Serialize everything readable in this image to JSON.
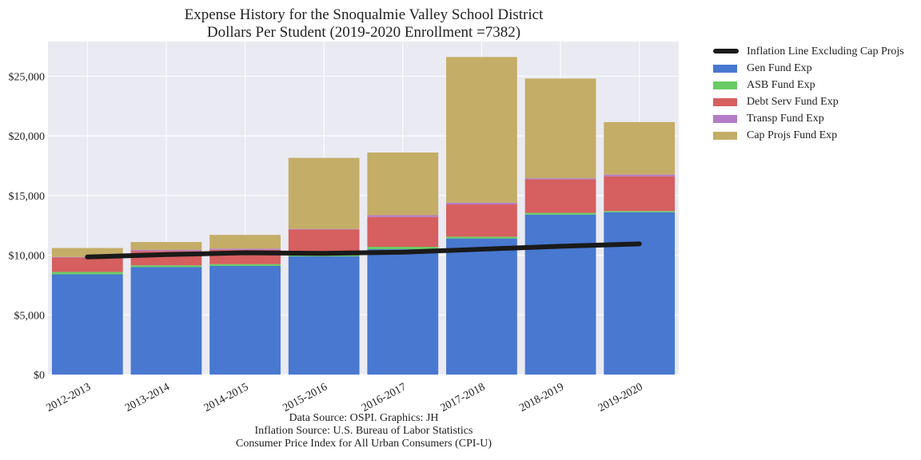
{
  "chart_data": {
    "type": "bar",
    "stacked": true,
    "title": "Expense History for the Snoqualmie Valley School District",
    "subtitle": "Dollars Per Student (2019-2020 Enrollment =7382)",
    "categories": [
      "2012-2013",
      "2013-2014",
      "2014-2015",
      "2015-2016",
      "2016-2017",
      "2017-2018",
      "2018-2019",
      "2019-2020"
    ],
    "series": [
      {
        "name": "Gen Fund Exp",
        "color": "#4878d0",
        "values": [
          8400,
          9000,
          9100,
          9900,
          10500,
          11400,
          13400,
          13600
        ]
      },
      {
        "name": "ASB Fund Exp",
        "color": "#6acc64",
        "values": [
          200,
          150,
          150,
          150,
          200,
          150,
          150,
          100
        ]
      },
      {
        "name": "Debt Serv Fund Exp",
        "color": "#d65f5f",
        "values": [
          1200,
          1200,
          1200,
          2100,
          2500,
          2700,
          2800,
          2900
        ]
      },
      {
        "name": "Transp Fund Exp",
        "color": "#b47cc7",
        "values": [
          50,
          100,
          100,
          50,
          150,
          150,
          100,
          150
        ]
      },
      {
        "name": "Cap Projs Fund Exp",
        "color": "#c4ad66",
        "values": [
          750,
          650,
          1150,
          5950,
          5250,
          12200,
          8350,
          4400
        ]
      }
    ],
    "line": {
      "name": "Inflation Line Excluding Cap Projs",
      "color": "#1a1a1a",
      "values": [
        9850,
        10050,
        10200,
        10150,
        10250,
        10500,
        10750,
        10950
      ]
    },
    "yticks": [
      "$0",
      "$5,000",
      "$10,000",
      "$15,000",
      "$20,000",
      "$25,000"
    ],
    "ytick_values": [
      0,
      5000,
      10000,
      15000,
      20000,
      25000
    ],
    "ylim": [
      0,
      27900
    ],
    "grid": true,
    "legend_position": "outside-right",
    "footer": [
      "Data Source: OSPI. Graphics: JH",
      "Inflation Source: U.S. Bureau of Labor Statistics",
      "Consumer Price Index for All Urban Consumers (CPI-U)"
    ]
  }
}
